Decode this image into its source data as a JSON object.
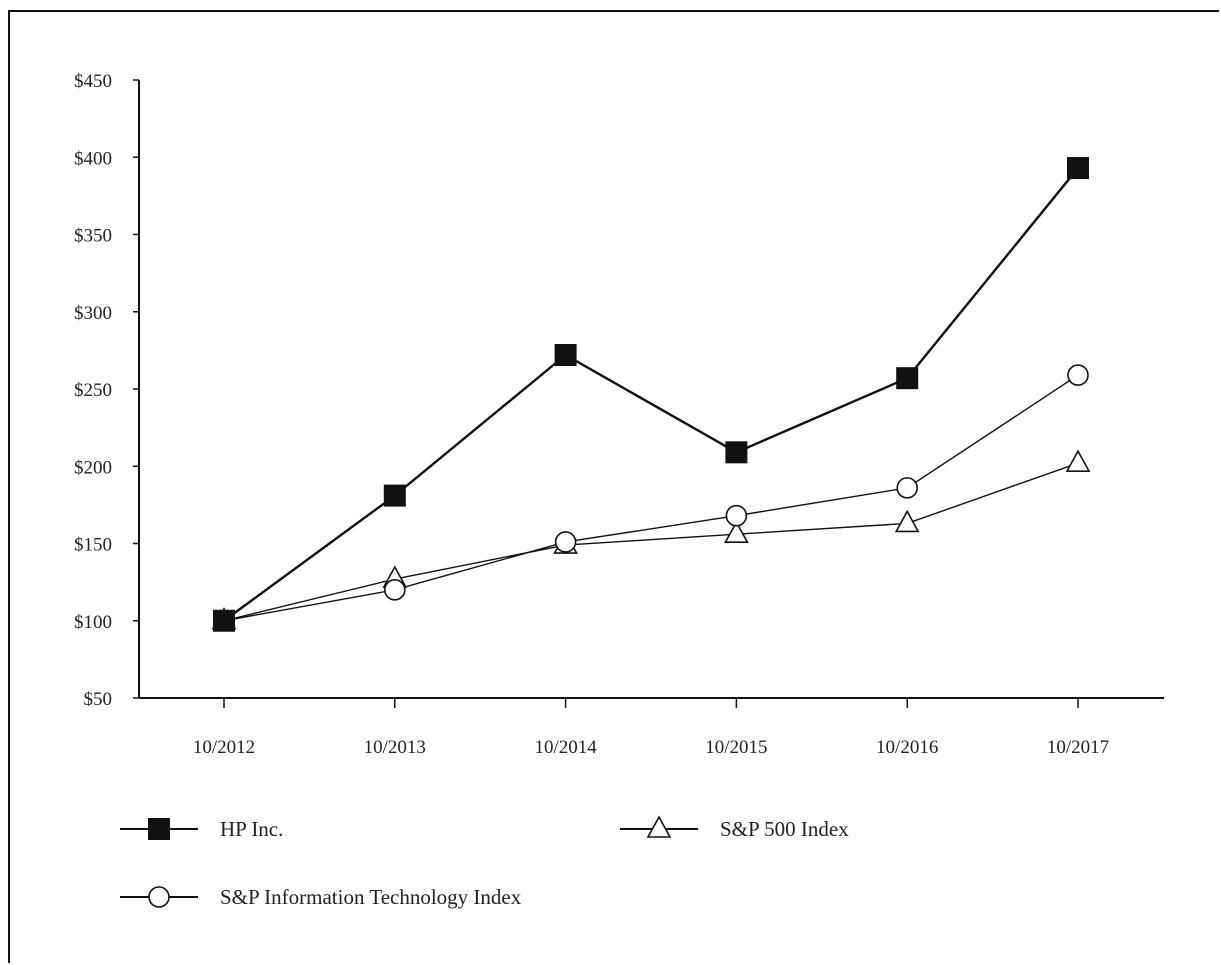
{
  "chart_data": {
    "type": "line",
    "title": "",
    "xlabel": "",
    "ylabel": "",
    "categories": [
      "10/2012",
      "10/2013",
      "10/2014",
      "10/2015",
      "10/2016",
      "10/2017"
    ],
    "y_ticks": [
      "$50",
      "$100",
      "$150",
      "$200",
      "$250",
      "$300",
      "$350",
      "$400",
      "$450"
    ],
    "ylim": [
      50,
      450
    ],
    "grid": false,
    "legend_position": "bottom",
    "series": [
      {
        "name": "HP Inc.",
        "marker": "square-filled",
        "values": [
          100,
          181,
          272,
          209,
          257,
          393
        ]
      },
      {
        "name": "S&P 500 Index",
        "marker": "triangle-open",
        "values": [
          100,
          127,
          149,
          156,
          163,
          202
        ]
      },
      {
        "name": "S&P Information Technology Index",
        "marker": "circle-open",
        "values": [
          100,
          120,
          151,
          168,
          186,
          259
        ]
      }
    ]
  }
}
